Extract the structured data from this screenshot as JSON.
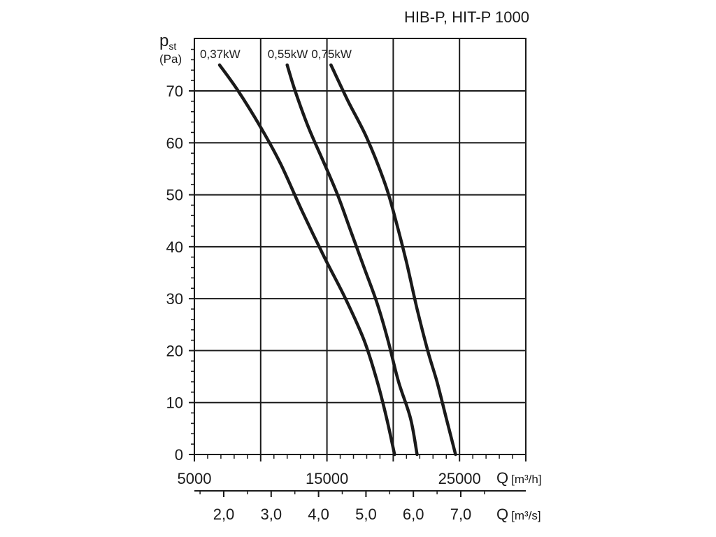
{
  "chart_data": {
    "type": "line",
    "title": "HIB-P, HIT-P 1000",
    "ylabel_main": "p",
    "ylabel_sub": "st",
    "ylabel_unit": "(Pa)",
    "xlabel_top": "Q",
    "xlabel_top_unit": "[m³/h]",
    "xlabel_bottom": "Q",
    "xlabel_bottom_unit": "[m³/s]",
    "xlim": [
      5000,
      30000
    ],
    "ylim": [
      0,
      80
    ],
    "x_ticks_labeled": [
      {
        "value": 5000,
        "label": "5000"
      },
      {
        "value": 15000,
        "label": "15000"
      },
      {
        "value": 25000,
        "label": "25000"
      }
    ],
    "x_gridlines": [
      10000,
      15000,
      20000,
      25000
    ],
    "y_ticks_labeled": [
      {
        "value": 0,
        "label": "0"
      },
      {
        "value": 10,
        "label": "10"
      },
      {
        "value": 20,
        "label": "20"
      },
      {
        "value": 30,
        "label": "30"
      },
      {
        "value": 40,
        "label": "40"
      },
      {
        "value": 50,
        "label": "50"
      },
      {
        "value": 60,
        "label": "60"
      },
      {
        "value": 70,
        "label": "70"
      }
    ],
    "secondary_x_ticks": [
      {
        "value": 2.0,
        "label": "2,0"
      },
      {
        "value": 3.0,
        "label": "3,0"
      },
      {
        "value": 4.0,
        "label": "4,0"
      },
      {
        "value": 5.0,
        "label": "5,0"
      },
      {
        "value": 6.0,
        "label": "6,0"
      },
      {
        "value": 7.0,
        "label": "7,0"
      }
    ],
    "grid": true,
    "series": [
      {
        "name": "0,37kW",
        "points": [
          [
            6900,
            75
          ],
          [
            8300,
            70
          ],
          [
            10000,
            63
          ],
          [
            11500,
            56
          ],
          [
            13100,
            47
          ],
          [
            14800,
            38
          ],
          [
            16400,
            30
          ],
          [
            17800,
            22
          ],
          [
            18800,
            14
          ],
          [
            19500,
            7
          ],
          [
            20100,
            0
          ]
        ]
      },
      {
        "name": "0,55kW",
        "points": [
          [
            12000,
            75
          ],
          [
            12600,
            70
          ],
          [
            13600,
            63
          ],
          [
            14800,
            56
          ],
          [
            15800,
            50
          ],
          [
            16800,
            43
          ],
          [
            17800,
            36
          ],
          [
            18800,
            29
          ],
          [
            19600,
            22
          ],
          [
            20400,
            14
          ],
          [
            21300,
            7
          ],
          [
            21800,
            0
          ]
        ]
      },
      {
        "name": "0,75kW",
        "points": [
          [
            15300,
            75
          ],
          [
            16600,
            68
          ],
          [
            18000,
            61
          ],
          [
            19400,
            52
          ],
          [
            20200,
            45
          ],
          [
            21000,
            37
          ],
          [
            21800,
            28
          ],
          [
            22600,
            20
          ],
          [
            23300,
            14
          ],
          [
            24000,
            7
          ],
          [
            24700,
            0
          ]
        ]
      }
    ]
  }
}
